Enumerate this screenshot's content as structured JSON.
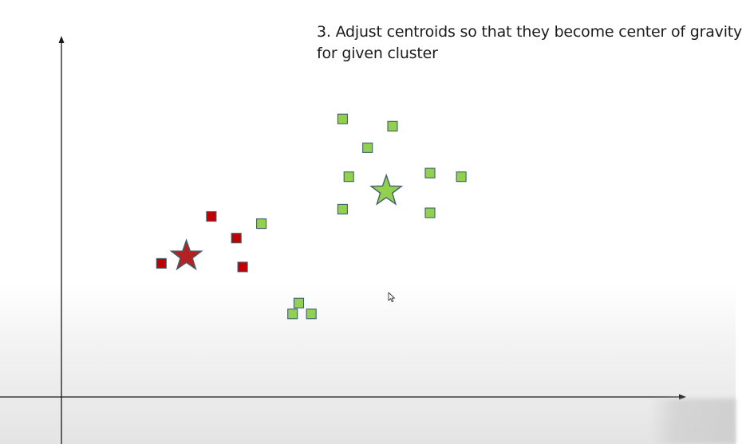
{
  "caption": {
    "line1": "3. Adjust centroids so that they become center of gravity",
    "line2": "for given cluster"
  },
  "colors": {
    "cluster_red": "#c00000",
    "cluster_green": "#92d050",
    "star_red": "#b22222",
    "star_green": "#92d050",
    "outline": "#3f5e6e",
    "axis": "#1a1a1a"
  },
  "icons": [
    "cursor-arrow-icon"
  ],
  "chart_data": {
    "type": "scatter",
    "title": "3. Adjust centroids so that they become center of gravity for given cluster",
    "xlabel": "",
    "ylabel": "",
    "xlim": [
      0,
      100
    ],
    "ylim": [
      0,
      100
    ],
    "grid": false,
    "series": [
      {
        "cluster": "red",
        "marker": "square",
        "color": "#c00000",
        "points": [
          [
            16,
            37
          ],
          [
            24,
            50
          ],
          [
            28,
            44
          ],
          [
            29,
            36
          ]
        ]
      },
      {
        "cluster": "green",
        "marker": "square",
        "color": "#92d050",
        "points": [
          [
            32,
            48
          ],
          [
            40,
            23
          ],
          [
            38,
            26
          ],
          [
            37,
            23
          ],
          [
            45,
            77
          ],
          [
            53,
            75
          ],
          [
            49,
            69
          ],
          [
            46,
            61
          ],
          [
            45,
            52
          ],
          [
            59,
            62
          ],
          [
            64,
            61
          ],
          [
            59,
            51
          ]
        ]
      }
    ],
    "centroids": [
      {
        "cluster": "red",
        "marker": "star",
        "color": "#b22222",
        "point": [
          20,
          39
        ]
      },
      {
        "cluster": "green",
        "marker": "star",
        "color": "#92d050",
        "point": [
          52,
          57
        ]
      }
    ]
  }
}
